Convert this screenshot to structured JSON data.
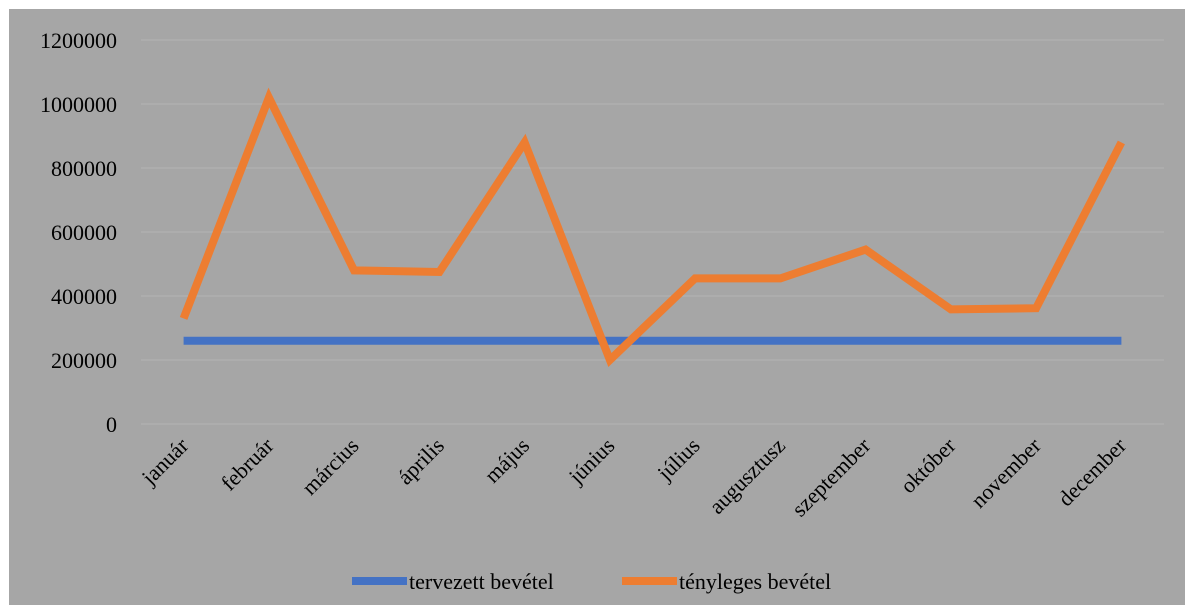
{
  "chart_data": {
    "type": "line",
    "title": "",
    "xlabel": "",
    "ylabel": "",
    "categories": [
      "január",
      "február",
      "március",
      "április",
      "május",
      "június",
      "július",
      "augusztusz",
      "szeptember",
      "október",
      "november",
      "december"
    ],
    "y_ticks": [
      "0",
      "200000",
      "400000",
      "600000",
      "800000",
      "1000000",
      "1200000"
    ],
    "ylim": [
      0,
      1200000
    ],
    "grid": true,
    "legend_position": "bottom",
    "series": [
      {
        "name": "tervezett bevétel",
        "color": "#4472c4",
        "values": [
          260000,
          260000,
          260000,
          260000,
          260000,
          260000,
          260000,
          260000,
          260000,
          260000,
          260000,
          260000
        ]
      },
      {
        "name": "tényleges bevétel",
        "color": "#ed7d31",
        "values": [
          330000,
          1020000,
          480000,
          475000,
          880000,
          200000,
          455000,
          455000,
          545000,
          358000,
          362000,
          880000
        ]
      }
    ]
  }
}
